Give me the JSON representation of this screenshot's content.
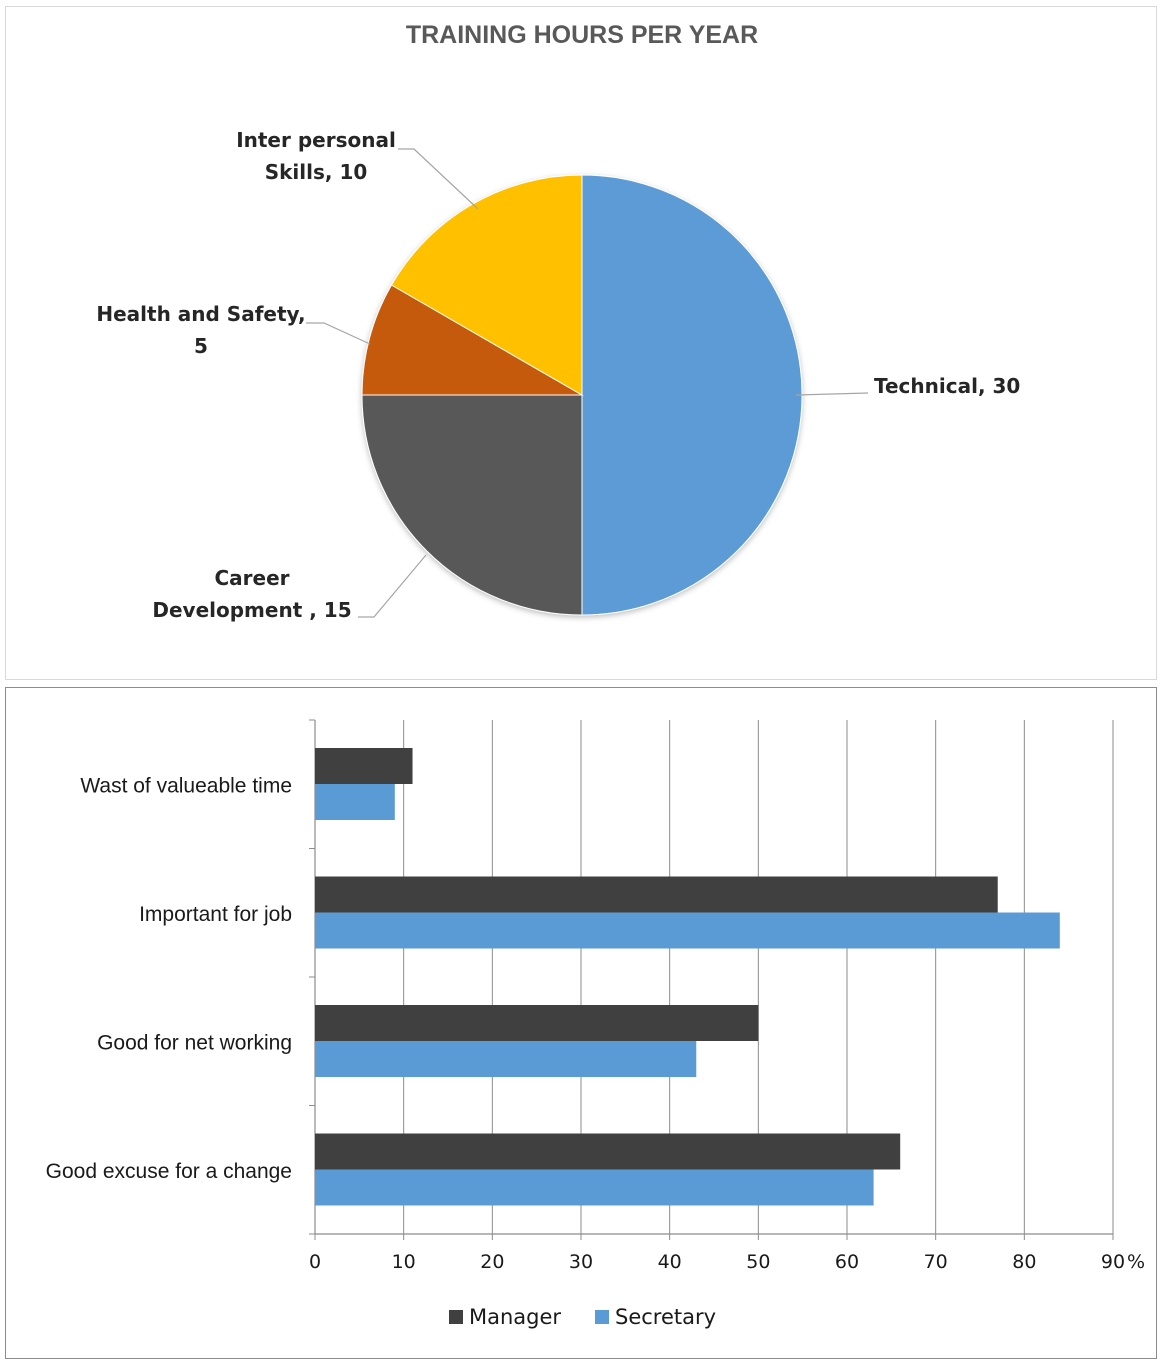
{
  "chart_data": [
    {
      "type": "pie",
      "title": "TRAINING HOURS PER YEAR",
      "slices": [
        {
          "label_lines": [
            "Technical, 30"
          ],
          "value": 30,
          "color": "#5b9bd5"
        },
        {
          "label_lines": [
            "Career",
            "Development , 15"
          ],
          "value": 15,
          "color": "#595959"
        },
        {
          "label_lines": [
            "Health and Safety,",
            "5"
          ],
          "value": 5,
          "color": "#c55a11"
        },
        {
          "label_lines": [
            "Inter personal",
            "Skills, 10"
          ],
          "value": 10,
          "color": "#ffc000"
        }
      ]
    },
    {
      "type": "bar",
      "orientation": "horizontal",
      "categories": [
        "Wast of valueable time",
        "Important for job",
        "Good for net working",
        "Good excuse for a change"
      ],
      "series": [
        {
          "name": "Manager",
          "values": [
            11,
            77,
            50,
            66
          ],
          "color": "#404040"
        },
        {
          "name": "Secretary",
          "values": [
            9,
            84,
            43,
            63
          ],
          "color": "#5b9bd5"
        }
      ],
      "xlim": [
        0,
        90
      ],
      "xticks": [
        "0",
        "10",
        "20",
        "30",
        "40",
        "50",
        "60",
        "70",
        "80",
        "90"
      ],
      "x_unit": "%",
      "grid": true,
      "legend": "bottom"
    }
  ]
}
